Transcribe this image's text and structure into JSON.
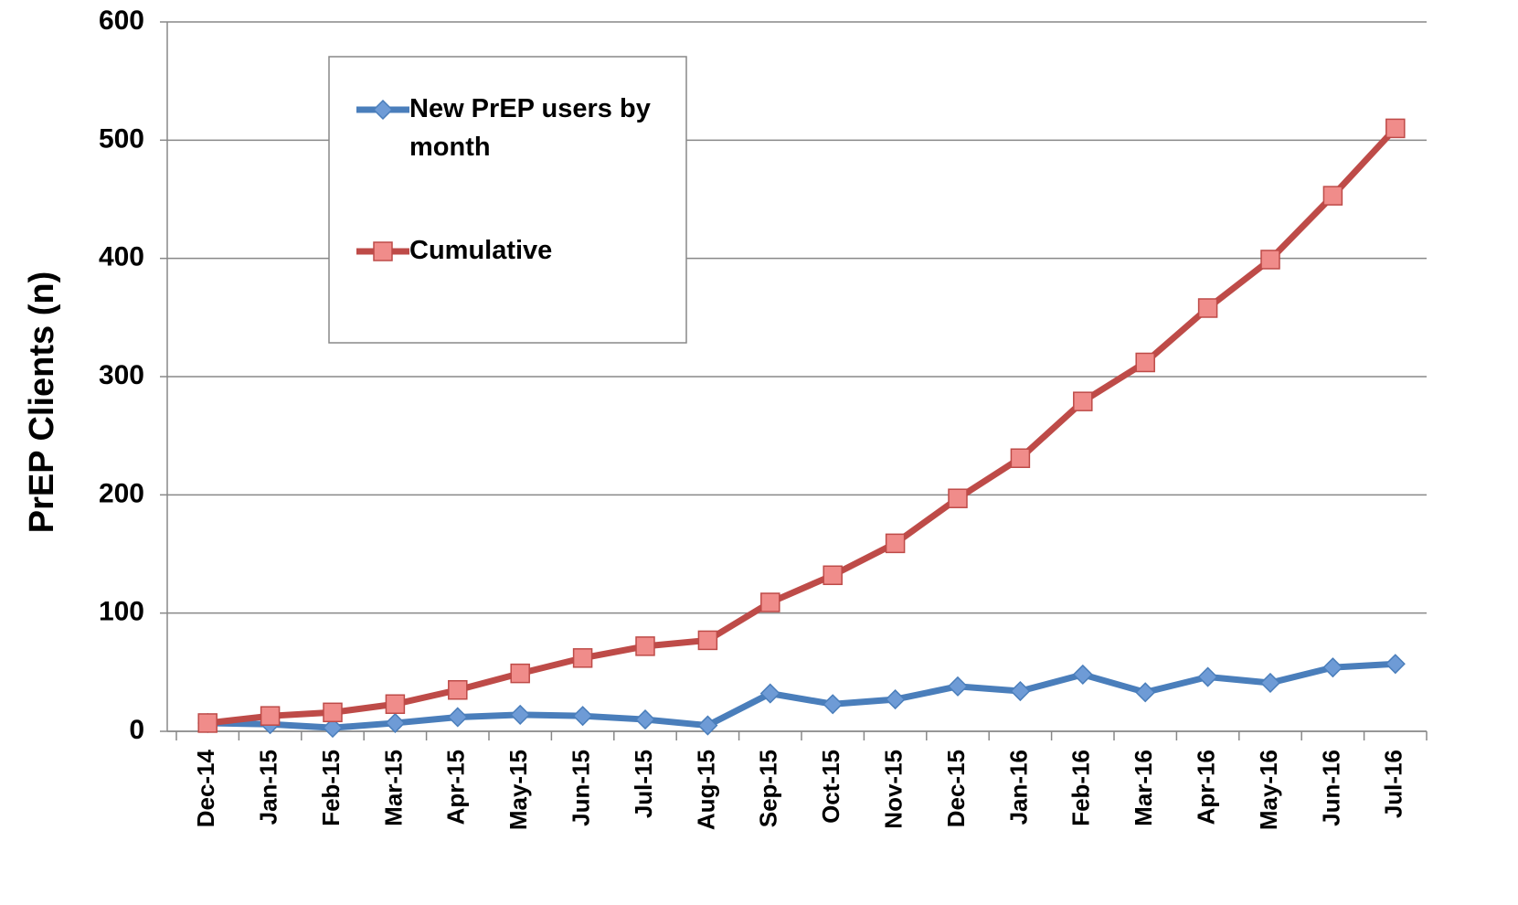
{
  "chart_data": {
    "type": "line",
    "ylabel": "PrEP Clients (n)",
    "categories": [
      "Dec-14",
      "Jan-15",
      "Feb-15",
      "Mar-15",
      "Apr-15",
      "May-15",
      "Jun-15",
      "Jul-15",
      "Aug-15",
      "Sep-15",
      "Oct-15",
      "Nov-15",
      "Dec-15",
      "Jan-16",
      "Feb-16",
      "Mar-16",
      "Apr-16",
      "May-16",
      "Jun-16",
      "Jul-16"
    ],
    "series": [
      {
        "name": "New PrEP users by month",
        "color": "#4a7ebb",
        "marker": "diamond",
        "values": [
          7,
          6,
          3,
          7,
          12,
          14,
          13,
          10,
          5,
          32,
          23,
          27,
          38,
          34,
          48,
          33,
          46,
          41,
          54,
          57
        ]
      },
      {
        "name": "Cumulative",
        "color": "#be4b48",
        "marker": "square",
        "values": [
          7,
          13,
          16,
          23,
          35,
          49,
          62,
          72,
          77,
          109,
          132,
          159,
          197,
          231,
          279,
          312,
          358,
          399,
          453,
          510
        ]
      }
    ],
    "ylim": [
      0,
      600
    ],
    "yticks": [
      0,
      100,
      200,
      300,
      400,
      500,
      600
    ],
    "grid": true,
    "legend": "upper left"
  }
}
